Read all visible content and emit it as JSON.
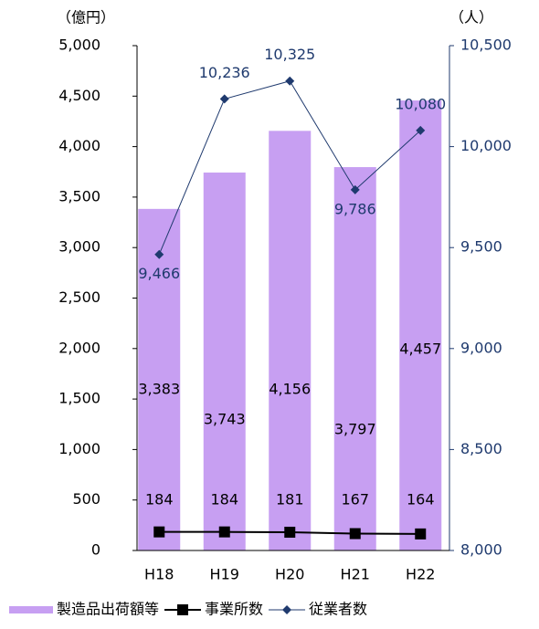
{
  "chart_data": {
    "type": "bar",
    "y_label": "（億円）",
    "y2_label": "（人）",
    "categories": [
      "H18",
      "H19",
      "H20",
      "H21",
      "H22"
    ],
    "series": [
      {
        "name": "製造品出荷額等",
        "type": "bar",
        "color": "#c79ff2",
        "values": [
          3383,
          3743,
          4156,
          3797,
          4457
        ],
        "value_labels": [
          "3,383",
          "3,743",
          "4,156",
          "3,797",
          "4,457"
        ]
      },
      {
        "name": "事業所数",
        "type": "line",
        "marker": "square",
        "color": "#000000",
        "values": [
          184,
          184,
          181,
          167,
          164
        ]
      },
      {
        "name": "従業者数",
        "type": "line",
        "marker": "diamond",
        "color": "#1f3a6e",
        "axis": "y2",
        "values": [
          9466,
          10236,
          10325,
          9786,
          10080
        ],
        "value_labels": [
          "9,466",
          "10,236",
          "10,325",
          "9,786",
          "10,080"
        ]
      }
    ],
    "ylim": [
      0,
      5000
    ],
    "yticks": [
      0,
      500,
      {
        "value": 1000,
        "label": "1,000"
      },
      {
        "value": 1500,
        "label": "1,500"
      },
      {
        "value": 2000,
        "label": "2,000"
      },
      {
        "value": 2500,
        "label": "2,500"
      },
      {
        "value": 3000,
        "label": "3,000"
      },
      {
        "value": 3500,
        "label": "3,500"
      },
      {
        "value": 4000,
        "label": "4,000"
      },
      {
        "value": 4500,
        "label": "4,500"
      },
      {
        "value": 5000,
        "label": "5,000"
      }
    ],
    "y2lim": [
      8000,
      10500
    ],
    "y2ticks": [
      {
        "value": 8000,
        "label": "8,000"
      },
      {
        "value": 8500,
        "label": "8,500"
      },
      {
        "value": 9000,
        "label": "9,000"
      },
      {
        "value": 9500,
        "label": "9,500"
      },
      {
        "value": 10000,
        "label": "10,000"
      },
      {
        "value": 10500,
        "label": "10,500"
      }
    ],
    "legend": "bottom"
  }
}
